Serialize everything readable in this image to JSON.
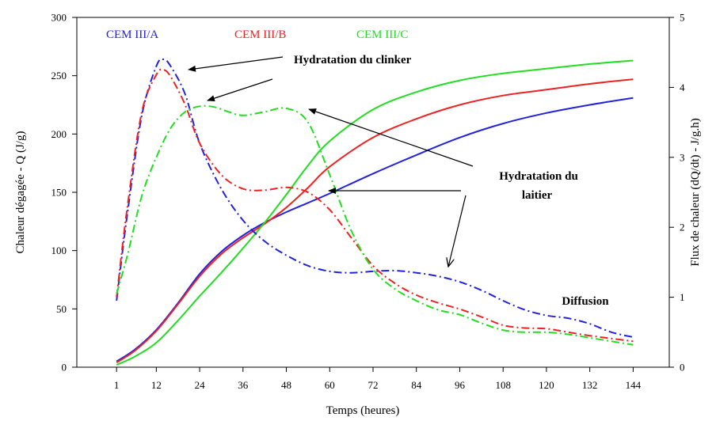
{
  "chart_data": {
    "type": "line",
    "xlabel": "Temps (heures)",
    "ylabel_left": "Chaleur dégagée  - Q (J/g)",
    "ylabel_right": "Flux de chaleur (dQ/dt) - J/g.h)",
    "x_ticks": [
      1,
      12,
      24,
      36,
      48,
      60,
      72,
      84,
      96,
      108,
      120,
      132,
      144
    ],
    "y_left_ticks": [
      0,
      50,
      100,
      150,
      200,
      250,
      300
    ],
    "y_right_ticks": [
      0,
      1,
      2,
      3,
      4,
      5
    ],
    "xlim": [
      -10,
      154
    ],
    "ylim_left": [
      0,
      300
    ],
    "ylim_right": [
      0,
      5
    ],
    "grid": false,
    "legend": [
      {
        "name": "CEM III/A",
        "color": "#2222dd"
      },
      {
        "name": "CEM III/B",
        "color": "#ee2222"
      },
      {
        "name": "CEM III/C",
        "color": "#22dd22"
      }
    ],
    "series": [
      {
        "name": "CEM III/A",
        "kind": "cumulative heat",
        "axis": "left",
        "color": "#2222dd",
        "x": [
          1,
          6,
          12,
          18,
          24,
          30,
          36,
          42,
          48,
          54,
          60,
          72,
          84,
          96,
          108,
          120,
          132,
          144
        ],
        "y": [
          5,
          15,
          32,
          55,
          80,
          99,
          113,
          124,
          133,
          141,
          149,
          166,
          182,
          197,
          209,
          218,
          225,
          231
        ]
      },
      {
        "name": "CEM III/B",
        "kind": "cumulative heat",
        "axis": "left",
        "color": "#ee2222",
        "x": [
          1,
          6,
          12,
          18,
          24,
          30,
          36,
          42,
          48,
          54,
          60,
          72,
          84,
          96,
          108,
          120,
          132,
          144
        ],
        "y": [
          4,
          14,
          31,
          54,
          78,
          97,
          111,
          123,
          137,
          154,
          172,
          197,
          213,
          225,
          233,
          238,
          243,
          247
        ]
      },
      {
        "name": "CEM III/C",
        "kind": "cumulative heat",
        "axis": "left",
        "color": "#22dd22",
        "x": [
          1,
          6,
          12,
          18,
          24,
          30,
          36,
          42,
          48,
          54,
          60,
          72,
          84,
          96,
          108,
          120,
          132,
          144
        ],
        "y": [
          2,
          9,
          21,
          40,
          61,
          81,
          102,
          124,
          148,
          173,
          194,
          221,
          236,
          246,
          252,
          256,
          260,
          263
        ]
      },
      {
        "name": "CEM III/A",
        "kind": "heat flux",
        "axis": "right",
        "color": "#2222dd",
        "x": [
          1,
          4,
          8,
          12,
          14,
          16,
          20,
          24,
          30,
          36,
          42,
          48,
          54,
          60,
          66,
          72,
          78,
          84,
          90,
          96,
          102,
          108,
          114,
          120,
          126,
          132,
          138,
          144
        ],
        "y": [
          0.95,
          2.2,
          3.6,
          4.3,
          4.4,
          4.3,
          3.9,
          3.2,
          2.55,
          2.1,
          1.8,
          1.6,
          1.45,
          1.37,
          1.35,
          1.37,
          1.38,
          1.35,
          1.3,
          1.22,
          1.1,
          0.95,
          0.82,
          0.74,
          0.7,
          0.62,
          0.5,
          0.43
        ]
      },
      {
        "name": "CEM III/B",
        "kind": "heat flux",
        "axis": "right",
        "color": "#ee2222",
        "x": [
          1,
          4,
          8,
          12,
          14,
          16,
          20,
          24,
          30,
          36,
          42,
          48,
          54,
          60,
          66,
          72,
          78,
          84,
          90,
          96,
          102,
          108,
          114,
          120,
          126,
          132,
          138,
          144
        ],
        "y": [
          1.0,
          2.3,
          3.65,
          4.18,
          4.25,
          4.15,
          3.75,
          3.2,
          2.75,
          2.55,
          2.53,
          2.57,
          2.5,
          2.25,
          1.85,
          1.45,
          1.2,
          1.03,
          0.92,
          0.83,
          0.72,
          0.6,
          0.56,
          0.55,
          0.5,
          0.45,
          0.41,
          0.37
        ]
      },
      {
        "name": "CEM III/C",
        "kind": "heat flux",
        "axis": "right",
        "color": "#22dd22",
        "x": [
          1,
          4,
          8,
          12,
          16,
          20,
          24,
          28,
          32,
          36,
          42,
          48,
          54,
          60,
          66,
          72,
          78,
          84,
          90,
          96,
          102,
          108,
          114,
          120,
          126,
          132,
          138,
          144
        ],
        "y": [
          1.05,
          1.6,
          2.45,
          3.0,
          3.42,
          3.65,
          3.73,
          3.72,
          3.65,
          3.6,
          3.65,
          3.7,
          3.5,
          2.75,
          1.95,
          1.4,
          1.12,
          0.95,
          0.82,
          0.75,
          0.63,
          0.53,
          0.5,
          0.5,
          0.47,
          0.42,
          0.37,
          0.32
        ]
      }
    ],
    "annotations": [
      {
        "id": "clinker",
        "text": "Hydratation du clinker"
      },
      {
        "id": "laitier_1",
        "text": "Hydratation du"
      },
      {
        "id": "laitier_2",
        "text": "laitier"
      },
      {
        "id": "diffusion",
        "text": "Diffusion"
      }
    ]
  }
}
